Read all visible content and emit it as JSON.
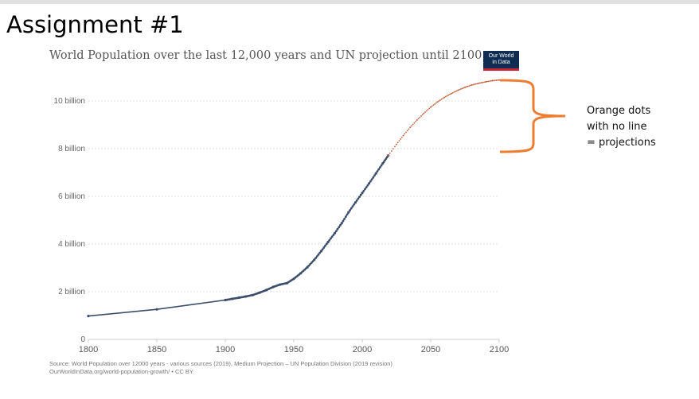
{
  "slide": {
    "title": "Assignment #1"
  },
  "logo": {
    "line1": "Our World",
    "line2": "in Data"
  },
  "annotation": {
    "lines": [
      "Orange dots",
      "with no line",
      "= projections"
    ],
    "brace_color": "#ed7d31"
  },
  "source": {
    "line1": "Source: World Population over 12000 years - various sources (2019), Medium Projection – UN Population Division (2019 revision)",
    "line2": "OurWorldInData.org/world-population-growth/ • CC BY"
  },
  "chart_data": {
    "type": "line",
    "title": "World Population over the last 12,000 years and UN projection until 2100",
    "xlabel": "",
    "ylabel": "",
    "xlim": [
      1800,
      2100
    ],
    "ylim": [
      0,
      11
    ],
    "grid": true,
    "x_ticks": [
      {
        "value": 1800,
        "label": "1800"
      },
      {
        "value": 1850,
        "label": "1850"
      },
      {
        "value": 1900,
        "label": "1900"
      },
      {
        "value": 1950,
        "label": "1950"
      },
      {
        "value": 2000,
        "label": "2000"
      },
      {
        "value": 2050,
        "label": "2050"
      },
      {
        "value": 2100,
        "label": "2100"
      }
    ],
    "y_ticks": [
      {
        "value": 0,
        "label": "0"
      },
      {
        "value": 2,
        "label": "2 billion"
      },
      {
        "value": 4,
        "label": "4 billion"
      },
      {
        "value": 6,
        "label": "6 billion"
      },
      {
        "value": 8,
        "label": "8 billion"
      },
      {
        "value": 10,
        "label": "10 billion"
      }
    ],
    "series": [
      {
        "name": "World population (historical)",
        "color": "#3c4e6b",
        "style": "solid",
        "x": [
          1800,
          1850,
          1900,
          1905,
          1910,
          1915,
          1920,
          1925,
          1930,
          1935,
          1940,
          1945,
          1950,
          1955,
          1960,
          1965,
          1970,
          1975,
          1980,
          1985,
          1990,
          1995,
          2000,
          2005,
          2010,
          2015,
          2019
        ],
        "y": [
          0.98,
          1.26,
          1.65,
          1.7,
          1.75,
          1.8,
          1.86,
          1.96,
          2.07,
          2.2,
          2.3,
          2.36,
          2.54,
          2.77,
          3.03,
          3.34,
          3.7,
          4.08,
          4.46,
          4.87,
          5.33,
          5.74,
          6.14,
          6.54,
          6.96,
          7.38,
          7.71
        ]
      },
      {
        "name": "UN Medium projection",
        "color": "#c0603a",
        "style": "dotted",
        "x": [
          2019,
          2025,
          2030,
          2035,
          2040,
          2045,
          2050,
          2055,
          2060,
          2065,
          2070,
          2075,
          2080,
          2085,
          2090,
          2095,
          2100
        ],
        "y": [
          7.71,
          8.18,
          8.55,
          8.89,
          9.2,
          9.48,
          9.74,
          9.96,
          10.15,
          10.31,
          10.45,
          10.57,
          10.67,
          10.74,
          10.8,
          10.85,
          10.88
        ]
      }
    ]
  }
}
